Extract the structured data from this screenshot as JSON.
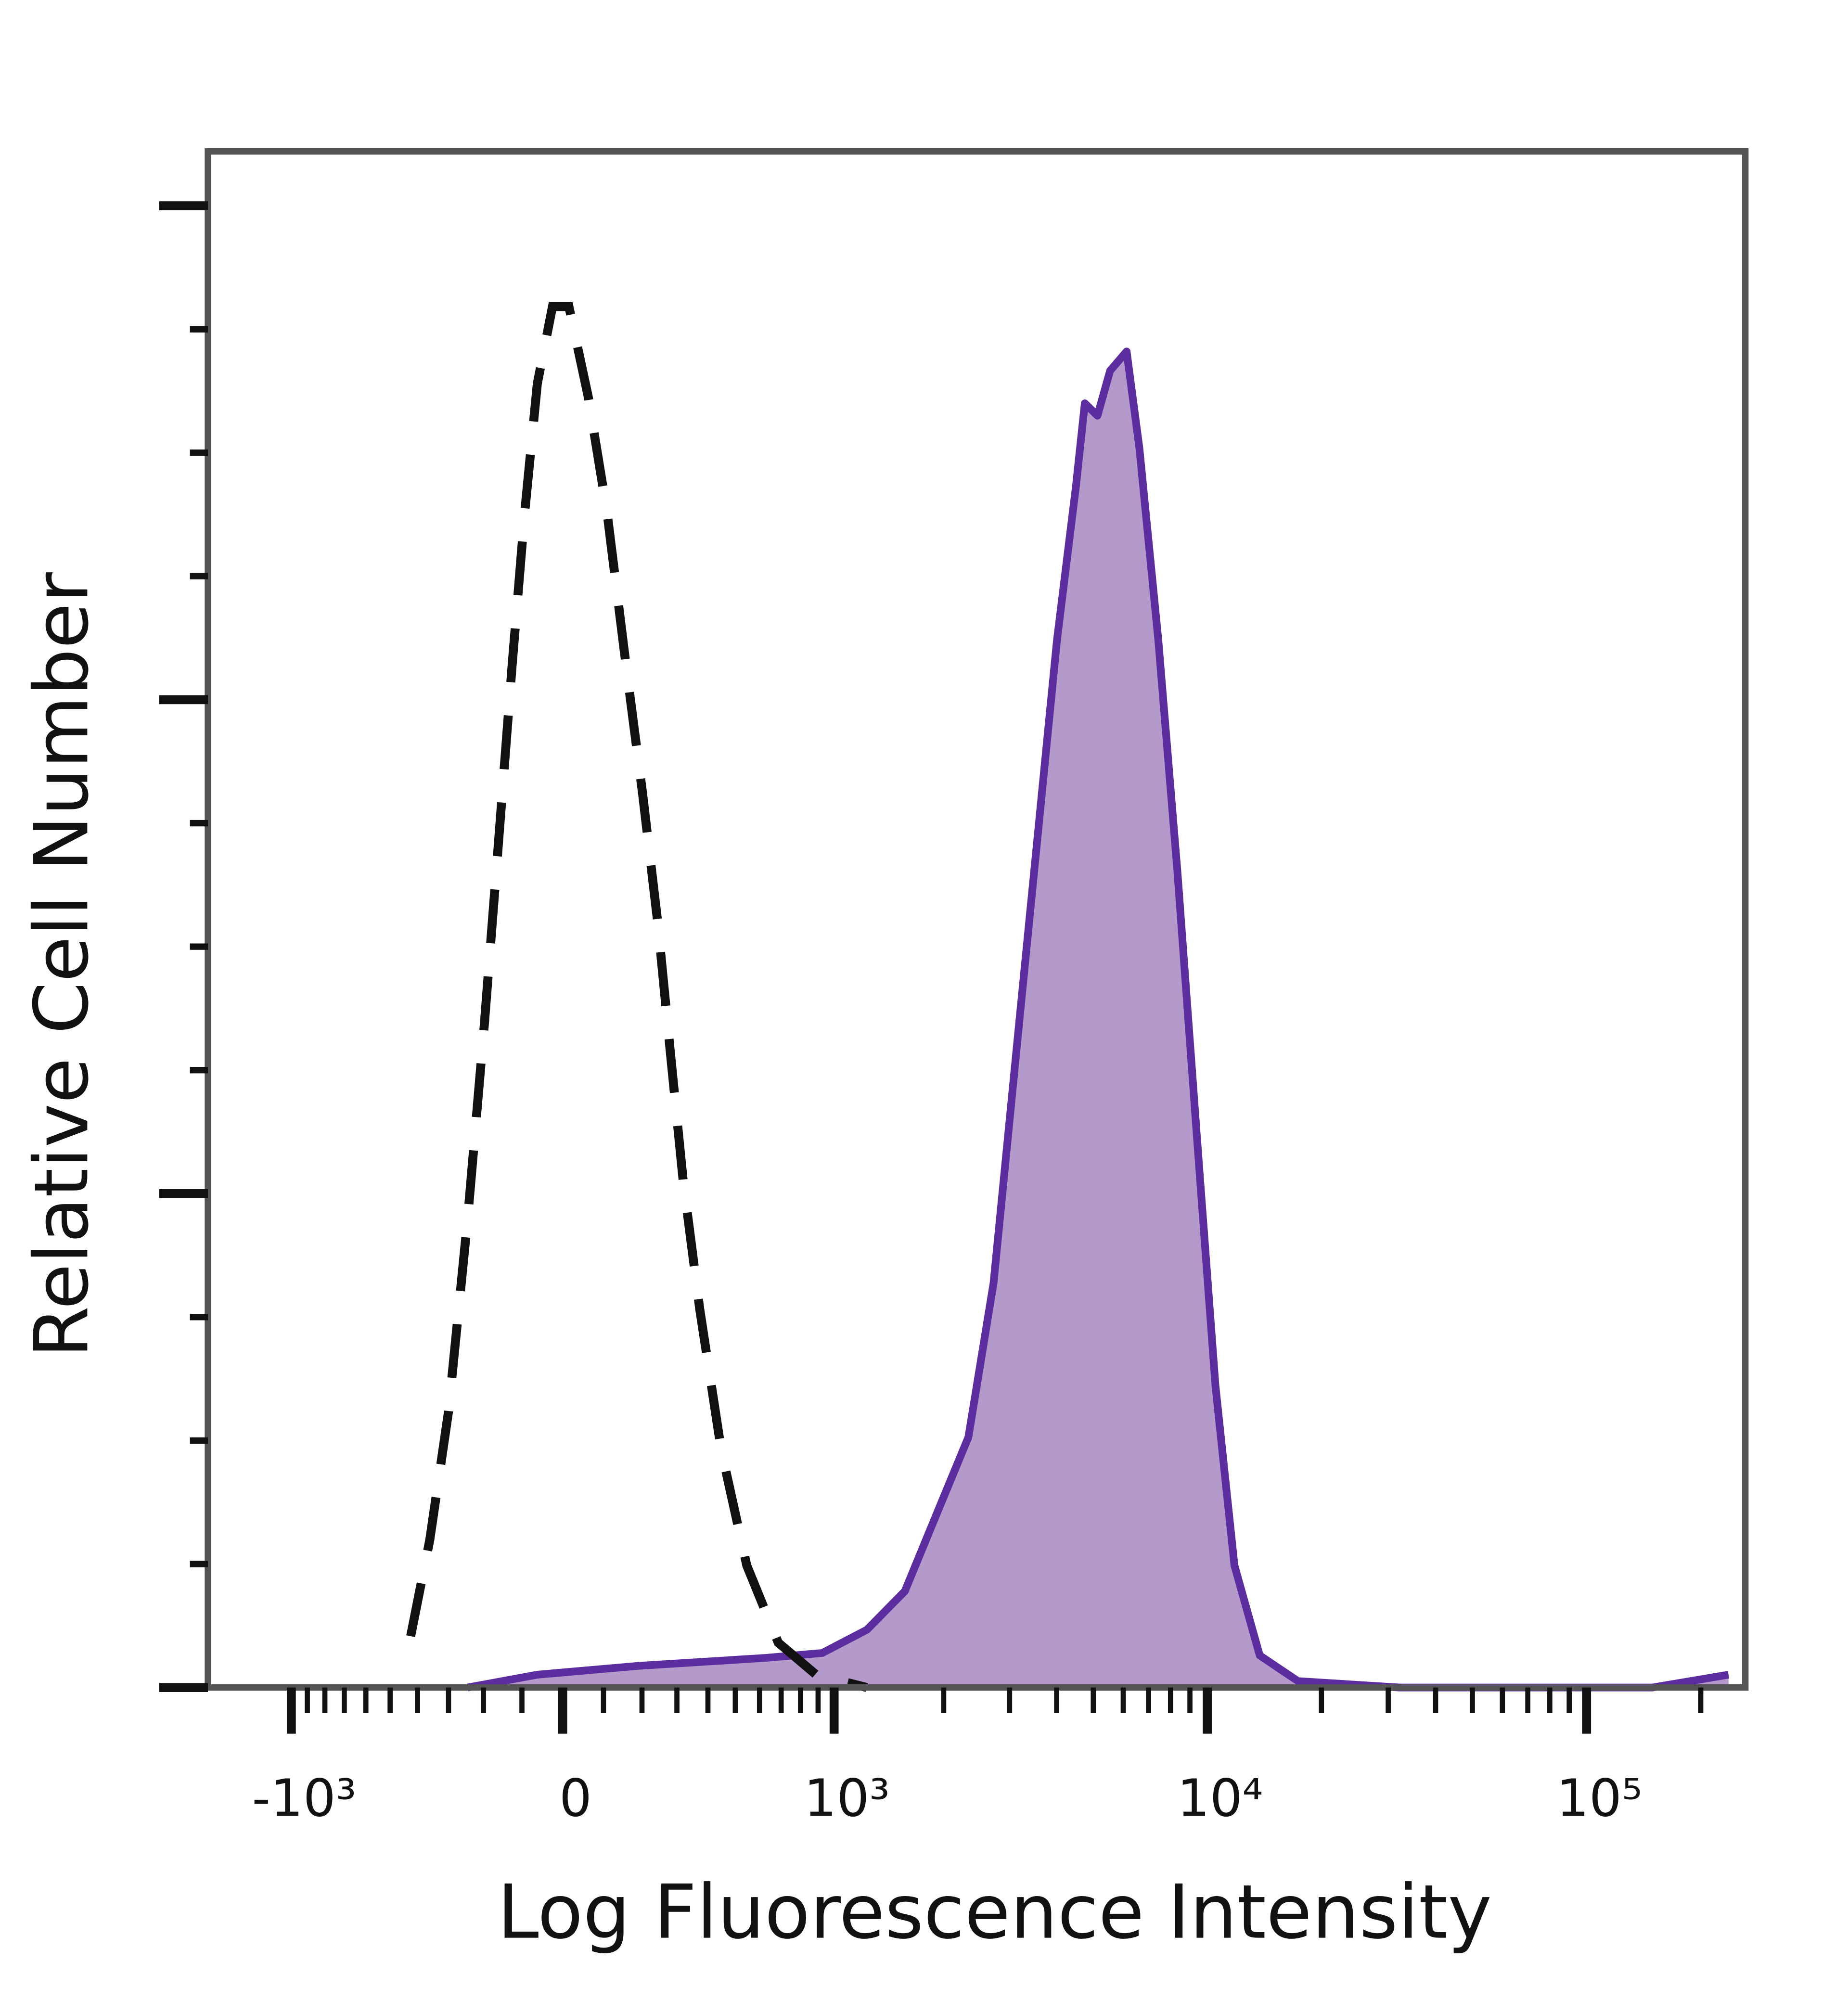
{
  "chart_data": {
    "type": "histogram-overlay",
    "x_label": "Log Fluorescence Intensity",
    "y_label": "Relative Cell Number",
    "xscale": "biexponential",
    "xlim": [
      -1700,
      262144
    ],
    "ylim": [
      0,
      311
    ],
    "xticks": [
      {
        "value": -1000,
        "label": "-10³"
      },
      0,
      {
        "value": 1000,
        "label": "10³"
      },
      {
        "value": 10000,
        "label": "10⁴"
      },
      {
        "value": 100000,
        "label": "10⁵"
      }
    ],
    "xminorticks": [
      -900,
      -800,
      -700,
      -600,
      -500,
      -400,
      -300,
      -200,
      -100,
      100,
      200,
      300,
      400,
      500,
      600,
      700,
      800,
      900,
      2000,
      3000,
      4000,
      5000,
      6000,
      7000,
      8000,
      9000,
      20000,
      30000,
      40000,
      50000,
      60000,
      70000,
      80000,
      90000,
      200000
    ],
    "yticks": [
      0,
      100,
      200,
      300
    ],
    "yminorticks": [
      25,
      50,
      75,
      125,
      150,
      175,
      225,
      250,
      275
    ],
    "series": [
      {
        "style": "dashed",
        "color": "#111111",
        "x": [
          -424,
          -359,
          -300,
          -244,
          -198,
          -158,
          -125,
          -93,
          -62,
          -25,
          15,
          62,
          109,
          158,
          202,
          244,
          280,
          319,
          372,
          447,
          546,
          686,
          888,
          1236
        ],
        "values": [
          10.4,
          29.9,
          55.9,
          94.9,
          133.9,
          173,
          206.8,
          238,
          264,
          279.6,
          279.6,
          261.4,
          238,
          206.8,
          180.8,
          154.7,
          128.7,
          102.7,
          76.7,
          48.1,
          24.7,
          9.1,
          2.6,
          0
        ]
      },
      {
        "style": "filled",
        "color": "#5b2d9e",
        "fill": "#b49acb",
        "x": [
          -244,
          -62,
          191,
          628,
          925,
          1236,
          1571,
          1914,
          2329,
          2719,
          3175,
          3568,
          4008,
          4500,
          4749,
          5129,
          5539,
          6124,
          6615,
          7428,
          8340,
          9357,
          10508,
          11792,
          13756,
          17340,
          32060,
          149300,
          236800
        ],
        "values": [
          0,
          2.6,
          4.4,
          6.0,
          7.0,
          11.7,
          19.5,
          35.1,
          50.7,
          81.9,
          133.9,
          173,
          212,
          243.2,
          260,
          257.5,
          266.6,
          270.5,
          251,
          212,
          165.1,
          113.1,
          61.1,
          24.7,
          6.5,
          1.3,
          0,
          0,
          2.6
        ]
      }
    ]
  }
}
